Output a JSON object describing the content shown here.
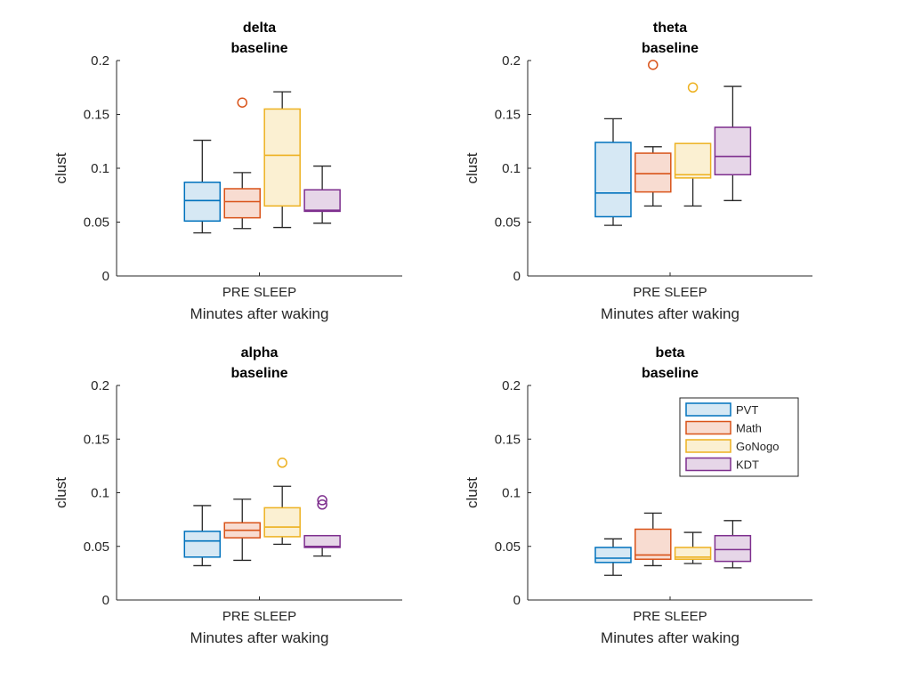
{
  "chart_data": [
    {
      "type": "box",
      "title": [
        "delta",
        "baseline"
      ],
      "xlabel": "Minutes after waking",
      "xtick": "PRE SLEEP",
      "ylabel": "clust",
      "ylim": [
        0,
        0.2
      ],
      "yticks": [
        "0",
        "0.05",
        "0.1",
        "0.15",
        "0.2"
      ],
      "series": [
        {
          "name": "PVT",
          "whisker_low": 0.04,
          "q1": 0.051,
          "median": 0.07,
          "q3": 0.087,
          "whisker_high": 0.126,
          "outliers": []
        },
        {
          "name": "Math",
          "whisker_low": 0.044,
          "q1": 0.054,
          "median": 0.069,
          "q3": 0.081,
          "whisker_high": 0.096,
          "outliers": [
            0.161
          ]
        },
        {
          "name": "GoNogo",
          "whisker_low": 0.045,
          "q1": 0.065,
          "median": 0.112,
          "q3": 0.155,
          "whisker_high": 0.171,
          "outliers": []
        },
        {
          "name": "KDT",
          "whisker_low": 0.049,
          "q1": 0.06,
          "median": 0.061,
          "q3": 0.08,
          "whisker_high": 0.102,
          "outliers": []
        }
      ]
    },
    {
      "type": "box",
      "title": [
        "theta",
        "baseline"
      ],
      "xlabel": "Minutes after waking",
      "xtick": "PRE SLEEP",
      "ylabel": "clust",
      "ylim": [
        0,
        0.2
      ],
      "yticks": [
        "0",
        "0.05",
        "0.1",
        "0.15",
        "0.2"
      ],
      "series": [
        {
          "name": "PVT",
          "whisker_low": 0.047,
          "q1": 0.055,
          "median": 0.077,
          "q3": 0.124,
          "whisker_high": 0.146,
          "outliers": []
        },
        {
          "name": "Math",
          "whisker_low": 0.065,
          "q1": 0.078,
          "median": 0.095,
          "q3": 0.114,
          "whisker_high": 0.12,
          "outliers": [
            0.196
          ]
        },
        {
          "name": "GoNogo",
          "whisker_low": 0.065,
          "q1": 0.091,
          "median": 0.094,
          "q3": 0.123,
          "whisker_high": 0.123,
          "outliers": [
            0.175
          ]
        },
        {
          "name": "KDT",
          "whisker_low": 0.07,
          "q1": 0.094,
          "median": 0.111,
          "q3": 0.138,
          "whisker_high": 0.176,
          "outliers": []
        }
      ]
    },
    {
      "type": "box",
      "title": [
        "alpha",
        "baseline"
      ],
      "xlabel": "Minutes after waking",
      "xtick": "PRE SLEEP",
      "ylabel": "clust",
      "ylim": [
        0,
        0.2
      ],
      "yticks": [
        "0",
        "0.05",
        "0.1",
        "0.15",
        "0.2"
      ],
      "series": [
        {
          "name": "PVT",
          "whisker_low": 0.032,
          "q1": 0.04,
          "median": 0.055,
          "q3": 0.064,
          "whisker_high": 0.088,
          "outliers": []
        },
        {
          "name": "Math",
          "whisker_low": 0.037,
          "q1": 0.058,
          "median": 0.065,
          "q3": 0.072,
          "whisker_high": 0.094,
          "outliers": []
        },
        {
          "name": "GoNogo",
          "whisker_low": 0.052,
          "q1": 0.059,
          "median": 0.068,
          "q3": 0.086,
          "whisker_high": 0.106,
          "outliers": [
            0.128
          ]
        },
        {
          "name": "KDT",
          "whisker_low": 0.041,
          "q1": 0.049,
          "median": 0.05,
          "q3": 0.06,
          "whisker_high": 0.06,
          "outliers": [
            0.089,
            0.093
          ]
        }
      ]
    },
    {
      "type": "box",
      "title": [
        "beta",
        "baseline"
      ],
      "xlabel": "Minutes after waking",
      "xtick": "PRE SLEEP",
      "ylabel": "clust",
      "ylim": [
        0,
        0.2
      ],
      "yticks": [
        "0",
        "0.05",
        "0.1",
        "0.15",
        "0.2"
      ],
      "series": [
        {
          "name": "PVT",
          "whisker_low": 0.023,
          "q1": 0.035,
          "median": 0.039,
          "q3": 0.049,
          "whisker_high": 0.057,
          "outliers": []
        },
        {
          "name": "Math",
          "whisker_low": 0.032,
          "q1": 0.038,
          "median": 0.042,
          "q3": 0.066,
          "whisker_high": 0.081,
          "outliers": []
        },
        {
          "name": "GoNogo",
          "whisker_low": 0.034,
          "q1": 0.038,
          "median": 0.04,
          "q3": 0.049,
          "whisker_high": 0.063,
          "outliers": []
        },
        {
          "name": "KDT",
          "whisker_low": 0.03,
          "q1": 0.036,
          "median": 0.047,
          "q3": 0.06,
          "whisker_high": 0.074,
          "outliers": []
        }
      ]
    }
  ],
  "legend": {
    "placement": "top-right of beta panel",
    "entries": [
      "PVT",
      "Math",
      "GoNogo",
      "KDT"
    ]
  },
  "colors": {
    "PVT": {
      "edge": "#0072BD",
      "fill": "#D6E8F4"
    },
    "Math": {
      "edge": "#D95319",
      "fill": "#F8DCD1"
    },
    "GoNogo": {
      "edge": "#EDB120",
      "fill": "#FBF0D2"
    },
    "KDT": {
      "edge": "#7E2F8E",
      "fill": "#E6D6E8"
    },
    "whisker": "#262626"
  }
}
